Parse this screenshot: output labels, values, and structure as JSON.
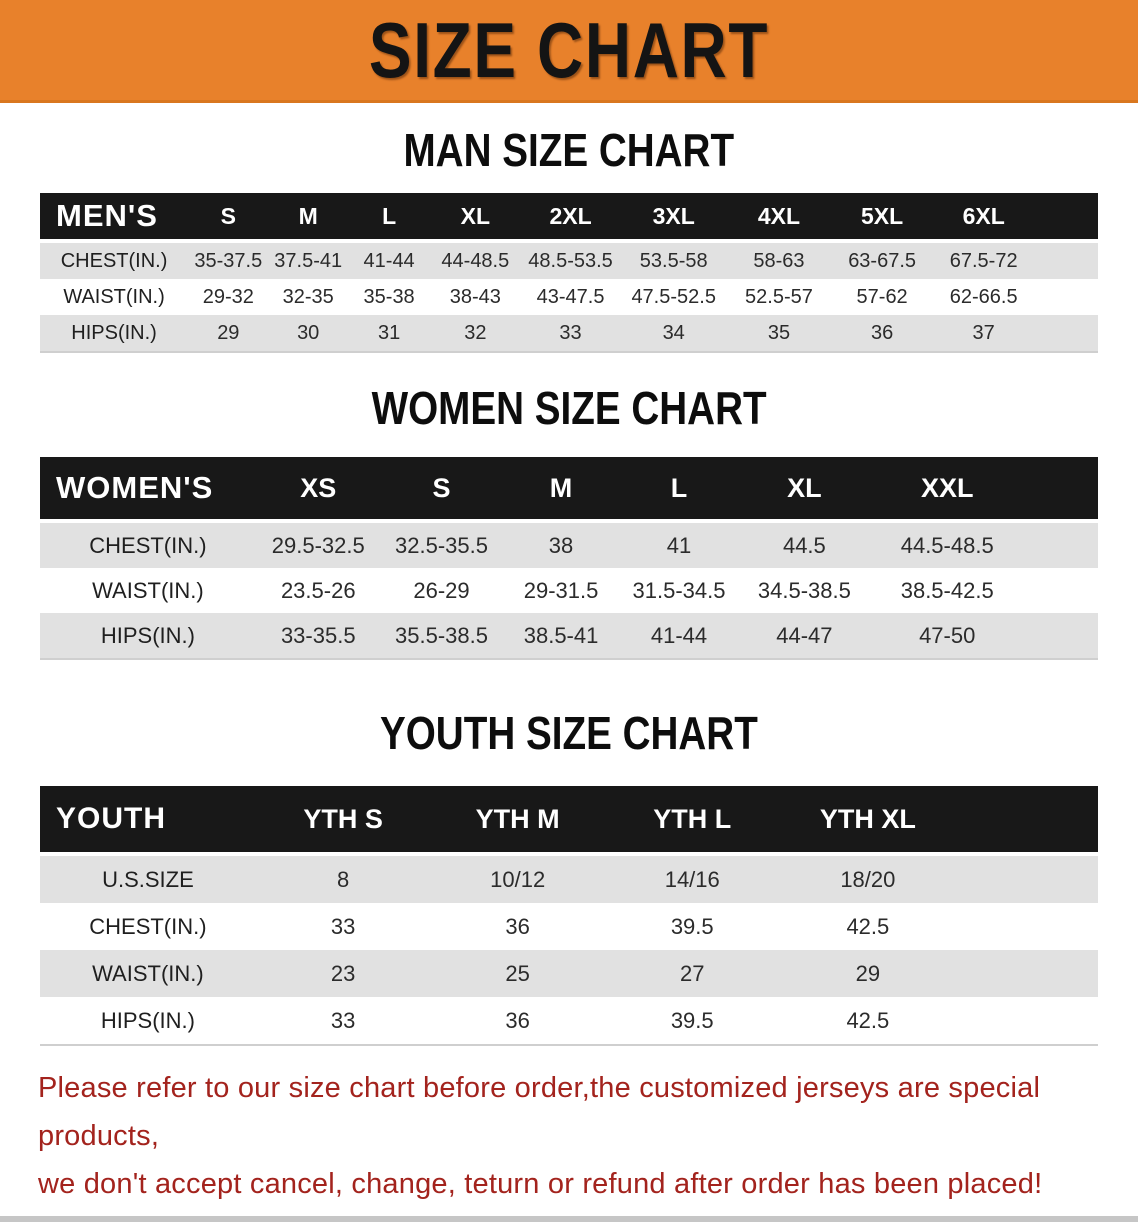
{
  "banner": {
    "title": "SIZE CHART",
    "bg_color": "#E8812B",
    "text_color": "#141414"
  },
  "colors": {
    "table_header_bg": "#181818",
    "table_header_text": "#FFFFFF",
    "stripe_row_bg": "#E1E1E1",
    "footer_text": "#A3231D"
  },
  "sections": [
    {
      "title": "MAN SIZE CHART",
      "header_label": "MEN'S",
      "columns": [
        "S",
        "M",
        "L",
        "XL",
        "2XL",
        "3XL",
        "4XL",
        "5XL",
        "6XL"
      ],
      "rows": [
        {
          "label": "CHEST(IN.)",
          "values": [
            "35-37.5",
            "37.5-41",
            "41-44",
            "44-48.5",
            "48.5-53.5",
            "53.5-58",
            "58-63",
            "63-67.5",
            "67.5-72"
          ]
        },
        {
          "label": "WAIST(IN.)",
          "values": [
            "29-32",
            "32-35",
            "35-38",
            "38-43",
            "43-47.5",
            "47.5-52.5",
            "52.5-57",
            "57-62",
            "62-66.5"
          ]
        },
        {
          "label": "HIPS(IN.)",
          "values": [
            "29",
            "30",
            "31",
            "32",
            "33",
            "34",
            "35",
            "36",
            "37"
          ]
        }
      ]
    },
    {
      "title": "WOMEN SIZE CHART",
      "header_label": "WOMEN'S",
      "columns": [
        "XS",
        "S",
        "M",
        "L",
        "XL",
        "XXL"
      ],
      "rows": [
        {
          "label": "CHEST(IN.)",
          "values": [
            "29.5-32.5",
            "32.5-35.5",
            "38",
            "41",
            "44.5",
            "44.5-48.5"
          ]
        },
        {
          "label": "WAIST(IN.)",
          "values": [
            "23.5-26",
            "26-29",
            "29-31.5",
            "31.5-34.5",
            "34.5-38.5",
            "38.5-42.5"
          ]
        },
        {
          "label": "HIPS(IN.)",
          "values": [
            "33-35.5",
            "35.5-38.5",
            "38.5-41",
            "41-44",
            "44-47",
            "47-50"
          ]
        }
      ]
    },
    {
      "title": "YOUTH SIZE CHART",
      "header_label": "YOUTH",
      "columns": [
        "YTH S",
        "YTH M",
        "YTH L",
        "YTH XL"
      ],
      "rows": [
        {
          "label": "U.S.SIZE",
          "values": [
            "8",
            "10/12",
            "14/16",
            "18/20"
          ]
        },
        {
          "label": "CHEST(IN.)",
          "values": [
            "33",
            "36",
            "39.5",
            "42.5"
          ]
        },
        {
          "label": "WAIST(IN.)",
          "values": [
            "23",
            "25",
            "27",
            "29"
          ]
        },
        {
          "label": "HIPS(IN.)",
          "values": [
            "33",
            "36",
            "39.5",
            "42.5"
          ]
        }
      ]
    }
  ],
  "footer": {
    "line1": "Please refer to our size chart before order,the customized jerseys are special products,",
    "line2": "we don't accept cancel, change, teturn or refund after order has been placed!"
  }
}
